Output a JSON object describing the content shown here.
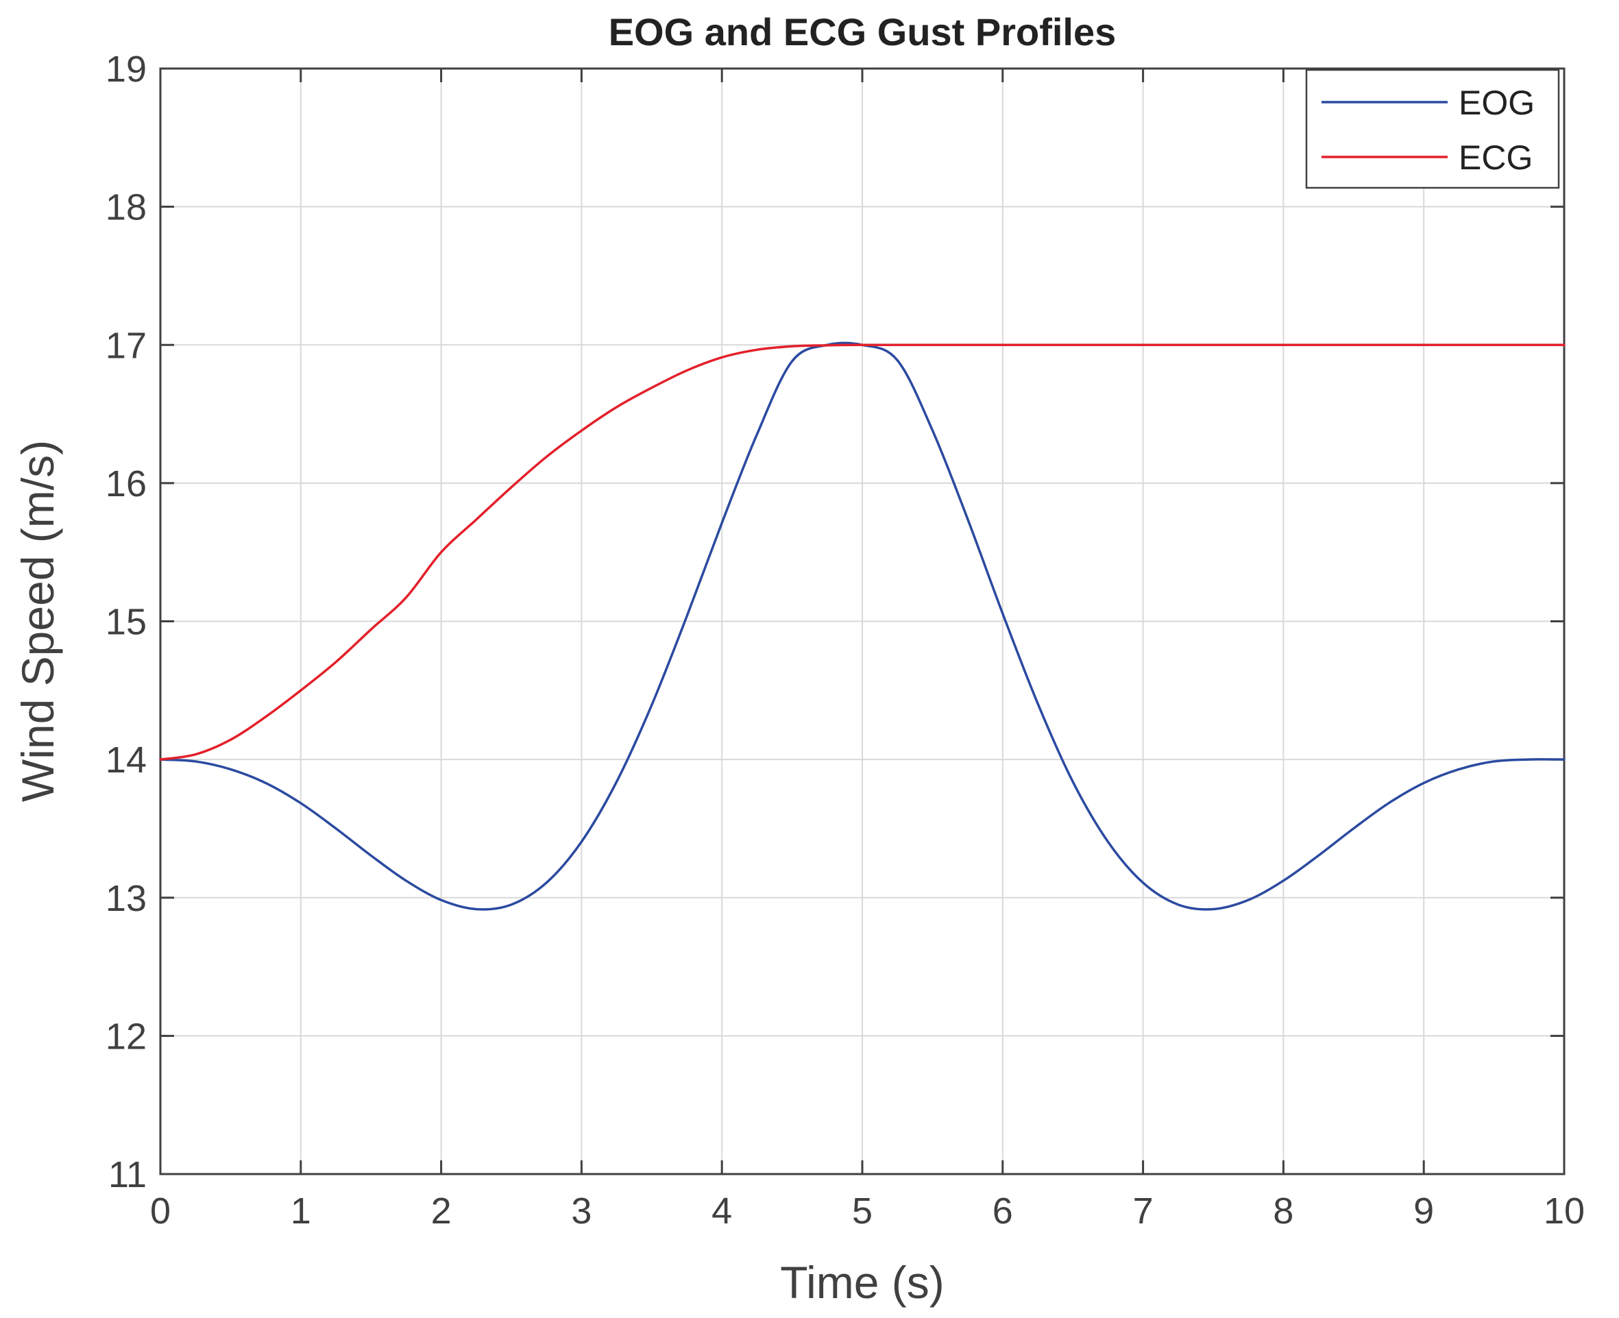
{
  "chart_data": {
    "type": "line",
    "title": "EOG and ECG Gust Profiles",
    "xlabel": "Time (s)",
    "ylabel": "Wind Speed (m/s)",
    "xlim": [
      0,
      10
    ],
    "ylim": [
      11,
      19
    ],
    "xticks": [
      0,
      1,
      2,
      3,
      4,
      5,
      6,
      7,
      8,
      9,
      10
    ],
    "yticks": [
      11,
      12,
      13,
      14,
      15,
      16,
      17,
      18,
      19
    ],
    "xtick_labels": [
      "0",
      "1",
      "2",
      "3",
      "4",
      "5",
      "6",
      "7",
      "8",
      "9",
      "10"
    ],
    "ytick_labels": [
      "11",
      "12",
      "13",
      "14",
      "15",
      "16",
      "17",
      "18",
      "19"
    ],
    "grid": true,
    "legend_position": "top-right",
    "series": [
      {
        "name": "EOG",
        "color": "#2b4aa0",
        "x": [
          0,
          0.25,
          0.5,
          0.75,
          1,
          1.25,
          1.5,
          1.75,
          2,
          2.25,
          2.5,
          2.75,
          3,
          3.25,
          3.5,
          3.75,
          4,
          4.25,
          4.5,
          4.75,
          5,
          5.25,
          5.5,
          5.75,
          6,
          6.25,
          6.5,
          6.75,
          7,
          7.25,
          7.5,
          7.75,
          8,
          8.25,
          8.5,
          8.75,
          9,
          9.25,
          9.5,
          9.75,
          10
        ],
        "y": [
          14.0,
          13.986,
          13.929,
          13.83,
          13.684,
          13.501,
          13.305,
          13.123,
          12.983,
          12.917,
          12.95,
          13.108,
          13.405,
          13.839,
          14.394,
          15.036,
          15.712,
          16.353,
          16.882,
          17.0,
          17.0,
          16.889,
          16.382,
          15.742,
          15.056,
          14.405,
          13.839,
          13.405,
          13.108,
          12.95,
          12.917,
          12.983,
          13.123,
          13.305,
          13.501,
          13.684,
          13.83,
          13.929,
          13.986,
          14.0,
          14.0
        ]
      },
      {
        "name": "ECG",
        "color": "#e3202a",
        "x": [
          0,
          0.25,
          0.5,
          0.75,
          1,
          1.25,
          1.5,
          1.75,
          2,
          2.25,
          2.5,
          2.75,
          3,
          3.25,
          3.5,
          3.75,
          4,
          4.25,
          4.5,
          4.75,
          5,
          6,
          7,
          8,
          9,
          10
        ],
        "y": [
          14.0,
          14.037,
          14.143,
          14.309,
          14.5,
          14.705,
          14.941,
          15.172,
          15.5,
          15.736,
          15.97,
          16.19,
          16.38,
          16.55,
          16.69,
          16.815,
          16.91,
          16.965,
          16.99,
          16.997,
          17.0,
          17.0,
          17.0,
          17.0,
          17.0,
          17.0
        ]
      }
    ]
  }
}
